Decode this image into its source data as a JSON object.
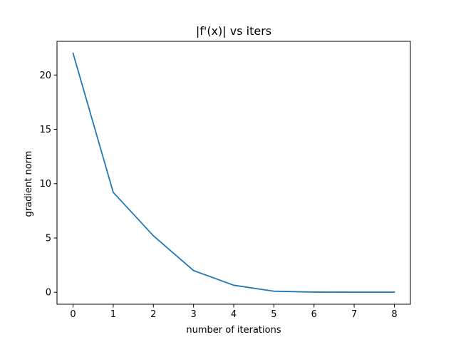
{
  "chart_data": {
    "type": "line",
    "title": "|f'(x)| vs iters",
    "xlabel": "number of iterations",
    "ylabel": "gradient norm",
    "x": [
      0,
      1,
      2,
      3,
      4,
      5,
      6,
      7,
      8
    ],
    "series": [
      {
        "values": [
          22.0,
          9.2,
          5.2,
          2.0,
          0.65,
          0.1,
          0.02,
          0.01,
          0.01
        ]
      }
    ],
    "xlim": [
      -0.4,
      8.4
    ],
    "ylim": [
      -1.1,
      23.1
    ],
    "xticks": [
      0,
      1,
      2,
      3,
      4,
      5,
      6,
      7,
      8
    ],
    "yticks": [
      0,
      5,
      10,
      15,
      20
    ],
    "xtick_labels": [
      "0",
      "1",
      "2",
      "3",
      "4",
      "5",
      "6",
      "7",
      "8"
    ],
    "ytick_labels": [
      "0",
      "5",
      "10",
      "15",
      "20"
    ],
    "grid": false,
    "legend": "none",
    "line_color": "#1f77b4"
  }
}
